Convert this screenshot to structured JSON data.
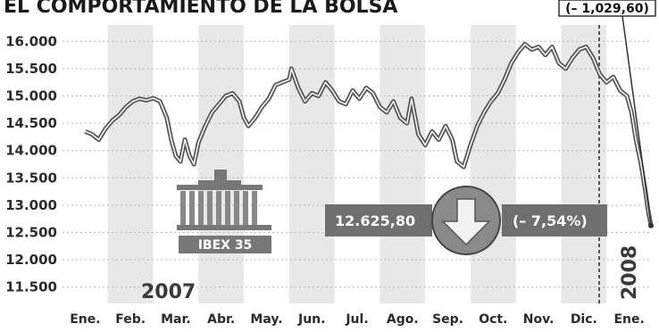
{
  "title": "EL COMPORTAMIENTO DE LA BOLSA",
  "logo": {
    "label": "IBEX 35"
  },
  "year_labels": {
    "left": "2007",
    "right": "2008"
  },
  "callout": {
    "text": "(– 1,029,60)"
  },
  "summary": {
    "value": "12.625,80",
    "change": "(– 7,54%)"
  },
  "colors": {
    "band": "#e8e8e8",
    "line": "#555555",
    "box": "#6f6f6f",
    "arrow": "#7a7a7a"
  },
  "icons": {
    "logo": "building-icon",
    "arrow": "down-arrow-icon"
  },
  "chart_data": {
    "type": "line",
    "title": "EL COMPORTAMIENTO DE LA BOLSA",
    "xlabel": "",
    "ylabel": "",
    "ylim": [
      11200,
      16300
    ],
    "yticks": [
      16000,
      15500,
      15000,
      14500,
      14000,
      13500,
      13000,
      12500,
      12000,
      11500
    ],
    "ytick_labels": [
      "16.000",
      "15.500",
      "15.000",
      "14.500",
      "14.000",
      "13.500",
      "13.000",
      "12.500",
      "12.000",
      "11.500"
    ],
    "categories": [
      "Ene.",
      "Feb.",
      "Mar.",
      "Abr.",
      "May.",
      "Jun.",
      "Jul.",
      "Ago.",
      "Sep.",
      "Oct.",
      "Nov.",
      "Dic.",
      "Ene."
    ],
    "grid": "alternating vertical month bands",
    "series": [
      {
        "values": [
          [
            0,
            14350
          ],
          [
            0.15,
            14300
          ],
          [
            0.3,
            14200
          ],
          [
            0.45,
            14400
          ],
          [
            0.6,
            14550
          ],
          [
            0.75,
            14650
          ],
          [
            0.9,
            14800
          ],
          [
            1.05,
            14900
          ],
          [
            1.2,
            14950
          ],
          [
            1.35,
            14920
          ],
          [
            1.5,
            14960
          ],
          [
            1.65,
            14900
          ],
          [
            1.8,
            14600
          ],
          [
            1.9,
            14200
          ],
          [
            2.0,
            13900
          ],
          [
            2.1,
            13800
          ],
          [
            2.2,
            14200
          ],
          [
            2.3,
            13900
          ],
          [
            2.4,
            13750
          ],
          [
            2.5,
            14150
          ],
          [
            2.65,
            14450
          ],
          [
            2.8,
            14700
          ],
          [
            2.95,
            14850
          ],
          [
            3.1,
            15000
          ],
          [
            3.25,
            15050
          ],
          [
            3.4,
            14900
          ],
          [
            3.5,
            14600
          ],
          [
            3.6,
            14450
          ],
          [
            3.75,
            14600
          ],
          [
            3.9,
            14800
          ],
          [
            4.05,
            14950
          ],
          [
            4.2,
            15200
          ],
          [
            4.35,
            15250
          ],
          [
            4.5,
            15300
          ],
          [
            4.55,
            15500
          ],
          [
            4.7,
            15150
          ],
          [
            4.85,
            14900
          ],
          [
            5.0,
            15050
          ],
          [
            5.15,
            15000
          ],
          [
            5.3,
            15250
          ],
          [
            5.45,
            15100
          ],
          [
            5.6,
            14900
          ],
          [
            5.75,
            14850
          ],
          [
            5.9,
            15100
          ],
          [
            6.05,
            14950
          ],
          [
            6.2,
            15150
          ],
          [
            6.35,
            15050
          ],
          [
            6.5,
            14800
          ],
          [
            6.65,
            14700
          ],
          [
            6.8,
            14900
          ],
          [
            6.95,
            14600
          ],
          [
            7.1,
            14500
          ],
          [
            7.2,
            14950
          ],
          [
            7.35,
            14300
          ],
          [
            7.5,
            14100
          ],
          [
            7.65,
            14350
          ],
          [
            7.8,
            14200
          ],
          [
            7.95,
            14450
          ],
          [
            8.1,
            14200
          ],
          [
            8.2,
            13800
          ],
          [
            8.35,
            13700
          ],
          [
            8.5,
            14100
          ],
          [
            8.65,
            14450
          ],
          [
            8.8,
            14700
          ],
          [
            8.95,
            14900
          ],
          [
            9.1,
            15050
          ],
          [
            9.25,
            15300
          ],
          [
            9.4,
            15600
          ],
          [
            9.55,
            15800
          ],
          [
            9.7,
            15950
          ],
          [
            9.85,
            15850
          ],
          [
            10.0,
            15900
          ],
          [
            10.15,
            15750
          ],
          [
            10.3,
            15900
          ],
          [
            10.45,
            15600
          ],
          [
            10.6,
            15500
          ],
          [
            10.75,
            15700
          ],
          [
            10.9,
            15850
          ],
          [
            11.05,
            15900
          ],
          [
            11.2,
            15700
          ],
          [
            11.35,
            15400
          ],
          [
            11.5,
            15250
          ],
          [
            11.65,
            15350
          ],
          [
            11.8,
            15100
          ],
          [
            11.95,
            15000
          ],
          [
            12.05,
            14700
          ],
          [
            12.15,
            14200
          ],
          [
            12.25,
            13800
          ],
          [
            12.35,
            13300
          ],
          [
            12.42,
            12900
          ],
          [
            12.48,
            12625.8
          ]
        ]
      }
    ],
    "annotations": [
      {
        "text": "12.625,80",
        "kind": "last value"
      },
      {
        "text": "(– 7,54%)",
        "kind": "percent change"
      },
      {
        "text": "(– 1,029,60)",
        "kind": "point change"
      }
    ]
  }
}
